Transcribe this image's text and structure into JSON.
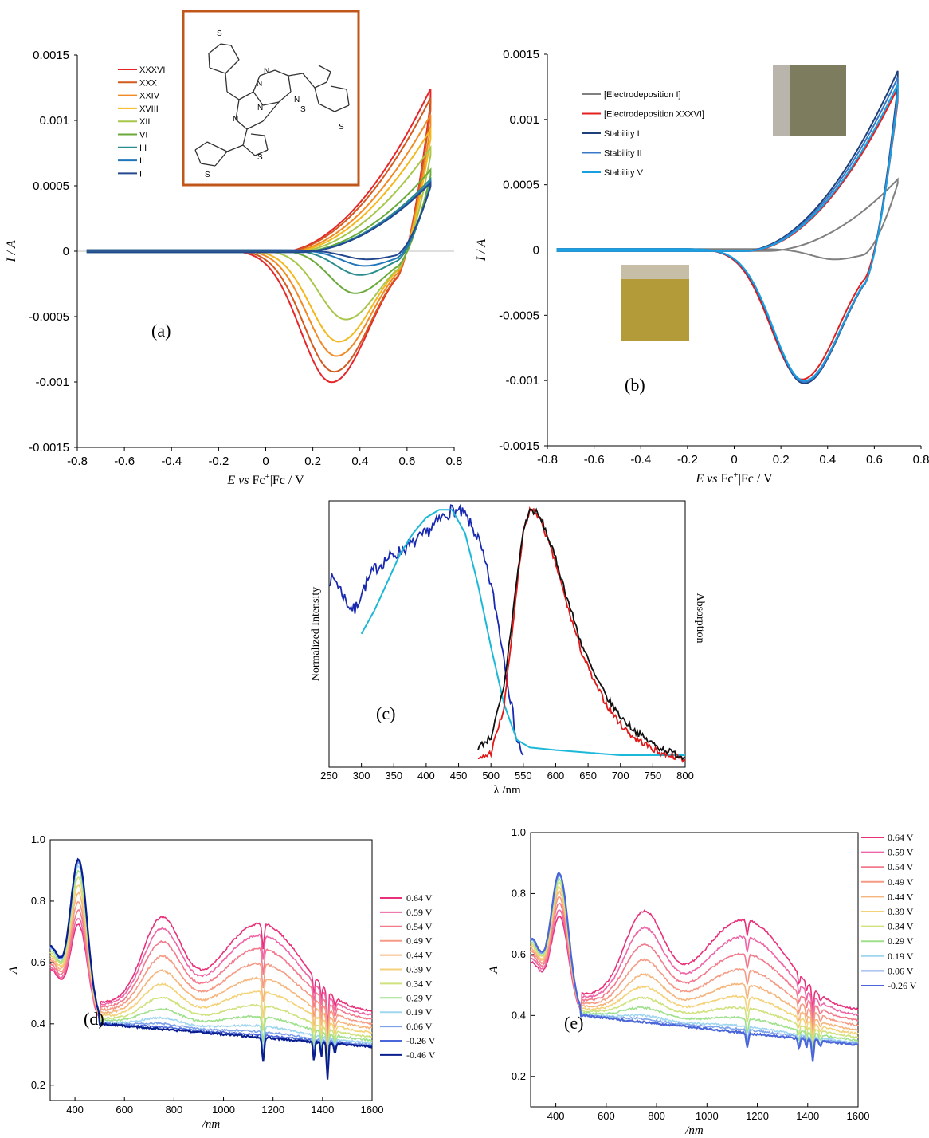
{
  "chart_data": [
    {
      "type": "line",
      "panel": "(a)",
      "ylabel": "I / A",
      "xlabel": "E vs Fc+|Fc / V",
      "xlim": [
        -0.8,
        0.8
      ],
      "ylim": [
        -0.0015,
        0.0015
      ],
      "xticks": [
        "-0.8",
        "-0.6",
        "-0.4",
        "-0.2",
        "0",
        "0.2",
        "0.4",
        "0.6",
        "0.8"
      ],
      "yticks": [
        "0.0015",
        "0.001",
        "0.0005",
        "0",
        "-0.0005",
        "-0.001",
        "-0.0015"
      ],
      "legend_position": "top-left",
      "series": [
        {
          "name": "XXXVI",
          "color": "#e8262a",
          "peak_anodic": 0.00125,
          "peak_cathodic": -0.00101,
          "cathodic_x": 0.28
        },
        {
          "name": "XXX",
          "color": "#d35a1f",
          "peak_anodic": 0.00118,
          "peak_cathodic": -0.00093,
          "cathodic_x": 0.29
        },
        {
          "name": "XXIV",
          "color": "#f08a24",
          "peak_anodic": 0.00105,
          "peak_cathodic": -0.00081,
          "cathodic_x": 0.3
        },
        {
          "name": "XVIII",
          "color": "#f2b81c",
          "peak_anodic": 0.00094,
          "peak_cathodic": -0.0007,
          "cathodic_x": 0.31
        },
        {
          "name": "XII",
          "color": "#a7c64a",
          "peak_anodic": 0.0008,
          "peak_cathodic": -0.00053,
          "cathodic_x": 0.34
        },
        {
          "name": "VI",
          "color": "#6aaa3a",
          "peak_anodic": 0.00063,
          "peak_cathodic": -0.00033,
          "cathodic_x": 0.38
        },
        {
          "name": "III",
          "color": "#2b8c8c",
          "peak_anodic": 0.00056,
          "peak_cathodic": -0.00019,
          "cathodic_x": 0.4
        },
        {
          "name": "II",
          "color": "#2277bb",
          "peak_anodic": 0.00054,
          "peak_cathodic": -0.00012,
          "cathodic_x": 0.42
        },
        {
          "name": "I",
          "color": "#24488f",
          "peak_anodic": 0.00053,
          "peak_cathodic": -7e-05,
          "cathodic_x": 0.43
        }
      ]
    },
    {
      "type": "line",
      "panel": "(b)",
      "ylabel": "I / A",
      "xlabel": "E vs Fc+|Fc / V",
      "xlim": [
        -0.8,
        0.8
      ],
      "ylim": [
        -0.0015,
        0.0015
      ],
      "xticks": [
        "-0.8",
        "-0.6",
        "-0.4",
        "-0.2",
        "0",
        "0.2",
        "0.4",
        "0.6",
        "0.8"
      ],
      "yticks": [
        "0.0015",
        "0.001",
        "0.0005",
        "0",
        "-0.0005",
        "-0.001",
        "-0.0015"
      ],
      "legend_position": "top-left",
      "series": [
        {
          "name": "[Electrodeposition I]",
          "color": "#808080",
          "peak_anodic": 0.00055,
          "peak_cathodic": -8e-05,
          "cathodic_x": 0.43
        },
        {
          "name": "[Electrodeposition XXXVI]",
          "color": "#e41f1f",
          "peak_anodic": 0.00125,
          "peak_cathodic": -0.001,
          "cathodic_x": 0.29
        },
        {
          "name": "Stability I",
          "color": "#1f3f7a",
          "peak_anodic": 0.00138,
          "peak_cathodic": -0.00103,
          "cathodic_x": 0.3
        },
        {
          "name": "Stability II",
          "color": "#3a78c8",
          "peak_anodic": 0.00133,
          "peak_cathodic": -0.00102,
          "cathodic_x": 0.3
        },
        {
          "name": "Stability V",
          "color": "#1aa0e0",
          "peak_anodic": 0.00128,
          "peak_cathodic": -0.00101,
          "cathodic_x": 0.3
        }
      ]
    },
    {
      "type": "line",
      "panel": "(c)",
      "ylabel": "Normalized Intensity",
      "ylabel_right": "Absorption",
      "xlabel": "λ /nm",
      "xlim": [
        250,
        800
      ],
      "ylim": [
        0,
        1
      ],
      "xticks": [
        "250",
        "300",
        "350",
        "400",
        "450",
        "500",
        "550",
        "600",
        "650",
        "700",
        "750",
        "800"
      ],
      "series": [
        {
          "color": "#1a2ab0",
          "x": [
            250,
            260,
            270,
            280,
            290,
            300,
            320,
            340,
            360,
            380,
            400,
            420,
            440,
            460,
            480,
            500,
            510,
            520,
            530,
            540,
            550
          ],
          "values": [
            0.72,
            0.72,
            0.67,
            0.62,
            0.6,
            0.67,
            0.76,
            0.8,
            0.83,
            0.86,
            0.9,
            0.95,
            0.99,
            0.97,
            0.88,
            0.7,
            0.57,
            0.42,
            0.26,
            0.1,
            0.04
          ]
        },
        {
          "color": "#1cb8d8",
          "x": [
            300,
            320,
            340,
            360,
            380,
            400,
            420,
            440,
            460,
            480,
            500,
            520,
            540,
            560,
            600,
            650,
            700,
            750,
            800
          ],
          "values": [
            0.51,
            0.6,
            0.71,
            0.82,
            0.9,
            0.96,
            0.99,
            0.99,
            0.9,
            0.7,
            0.46,
            0.24,
            0.1,
            0.07,
            0.06,
            0.05,
            0.04,
            0.04,
            0.04
          ]
        },
        {
          "color": "#e01818",
          "x": [
            480,
            500,
            520,
            540,
            550,
            560,
            570,
            580,
            600,
            620,
            640,
            660,
            680,
            700,
            720,
            740,
            760,
            780,
            800
          ],
          "values": [
            0.02,
            0.05,
            0.22,
            0.68,
            0.9,
            0.99,
            0.98,
            0.93,
            0.78,
            0.6,
            0.44,
            0.32,
            0.23,
            0.16,
            0.11,
            0.08,
            0.05,
            0.04,
            0.02
          ]
        },
        {
          "color": "#111111",
          "x": [
            480,
            500,
            520,
            540,
            550,
            560,
            570,
            580,
            600,
            620,
            640,
            660,
            680,
            700,
            720,
            740,
            760,
            780,
            800
          ],
          "values": [
            0.07,
            0.11,
            0.3,
            0.72,
            0.91,
            0.99,
            0.98,
            0.94,
            0.8,
            0.63,
            0.47,
            0.35,
            0.26,
            0.19,
            0.14,
            0.1,
            0.07,
            0.05,
            0.03
          ]
        }
      ]
    },
    {
      "type": "line",
      "panel": "(d)",
      "ylabel": "A",
      "xlabel": "/nm",
      "xlim": [
        300,
        1600
      ],
      "ylim": [
        0.15,
        1.0
      ],
      "xticks": [
        "400",
        "600",
        "800",
        "1000",
        "1200",
        "1400",
        "1600"
      ],
      "yticks": [
        "0.2",
        "0.4",
        "0.6",
        "0.8",
        "1.0"
      ],
      "legend_position": "right",
      "series": [
        {
          "name": "0.64 V",
          "color": "#e8317a",
          "f": 1.0
        },
        {
          "name": "0.59 V",
          "color": "#ee66a8",
          "f": 0.9
        },
        {
          "name": "0.54 V",
          "color": "#f27a8c",
          "f": 0.78
        },
        {
          "name": "0.49 V",
          "color": "#f59a84",
          "f": 0.65
        },
        {
          "name": "0.44 V",
          "color": "#f6b57c",
          "f": 0.52
        },
        {
          "name": "0.39 V",
          "color": "#f4d27a",
          "f": 0.4
        },
        {
          "name": "0.34 V",
          "color": "#cfe27e",
          "f": 0.28
        },
        {
          "name": "0.29 V",
          "color": "#9ee08c",
          "f": 0.18
        },
        {
          "name": "0.19 V",
          "color": "#9fd6ef",
          "f": 0.1
        },
        {
          "name": "0.06 V",
          "color": "#7da1ea",
          "f": 0.05
        },
        {
          "name": "-0.26 V",
          "color": "#4a66d8",
          "f": 0.02
        },
        {
          "name": "-0.46 V",
          "color": "#0a1f8f",
          "f": 0.0
        }
      ]
    },
    {
      "type": "line",
      "panel": "(e)",
      "ylabel": "A",
      "xlabel": "/nm",
      "xlim": [
        300,
        1600
      ],
      "ylim": [
        0.1,
        1.0
      ],
      "xticks": [
        "400",
        "600",
        "800",
        "1000",
        "1200",
        "1400",
        "1600"
      ],
      "yticks": [
        "0.2",
        "0.4",
        "0.6",
        "0.8",
        "1.0"
      ],
      "legend_position": "right",
      "series": [
        {
          "name": "0.64 V",
          "color": "#e8317a",
          "f": 1.0
        },
        {
          "name": "0.59 V",
          "color": "#ee66a8",
          "f": 0.85
        },
        {
          "name": "0.54 V",
          "color": "#f27a8c",
          "f": 0.7
        },
        {
          "name": "0.49 V",
          "color": "#f59a84",
          "f": 0.56
        },
        {
          "name": "0.44 V",
          "color": "#f6b57c",
          "f": 0.43
        },
        {
          "name": "0.39 V",
          "color": "#f4d27a",
          "f": 0.32
        },
        {
          "name": "0.34 V",
          "color": "#cfe27e",
          "f": 0.22
        },
        {
          "name": "0.29 V",
          "color": "#9ee08c",
          "f": 0.13
        },
        {
          "name": "0.19 V",
          "color": "#9fd6ef",
          "f": 0.06
        },
        {
          "name": "0.06 V",
          "color": "#7da1ea",
          "f": 0.03
        },
        {
          "name": "-0.26 V",
          "color": "#4a66d8",
          "f": 0.0
        }
      ]
    }
  ],
  "panel_labels": {
    "a": "(a)",
    "b": "(b)",
    "c": "(c)",
    "d": "(d)",
    "e": "(e)"
  },
  "structure_atoms": {
    "S": "S",
    "N": "N"
  },
  "photos": {
    "top_color": "#7d7c5f",
    "bottom_color": "#b39b3a"
  }
}
